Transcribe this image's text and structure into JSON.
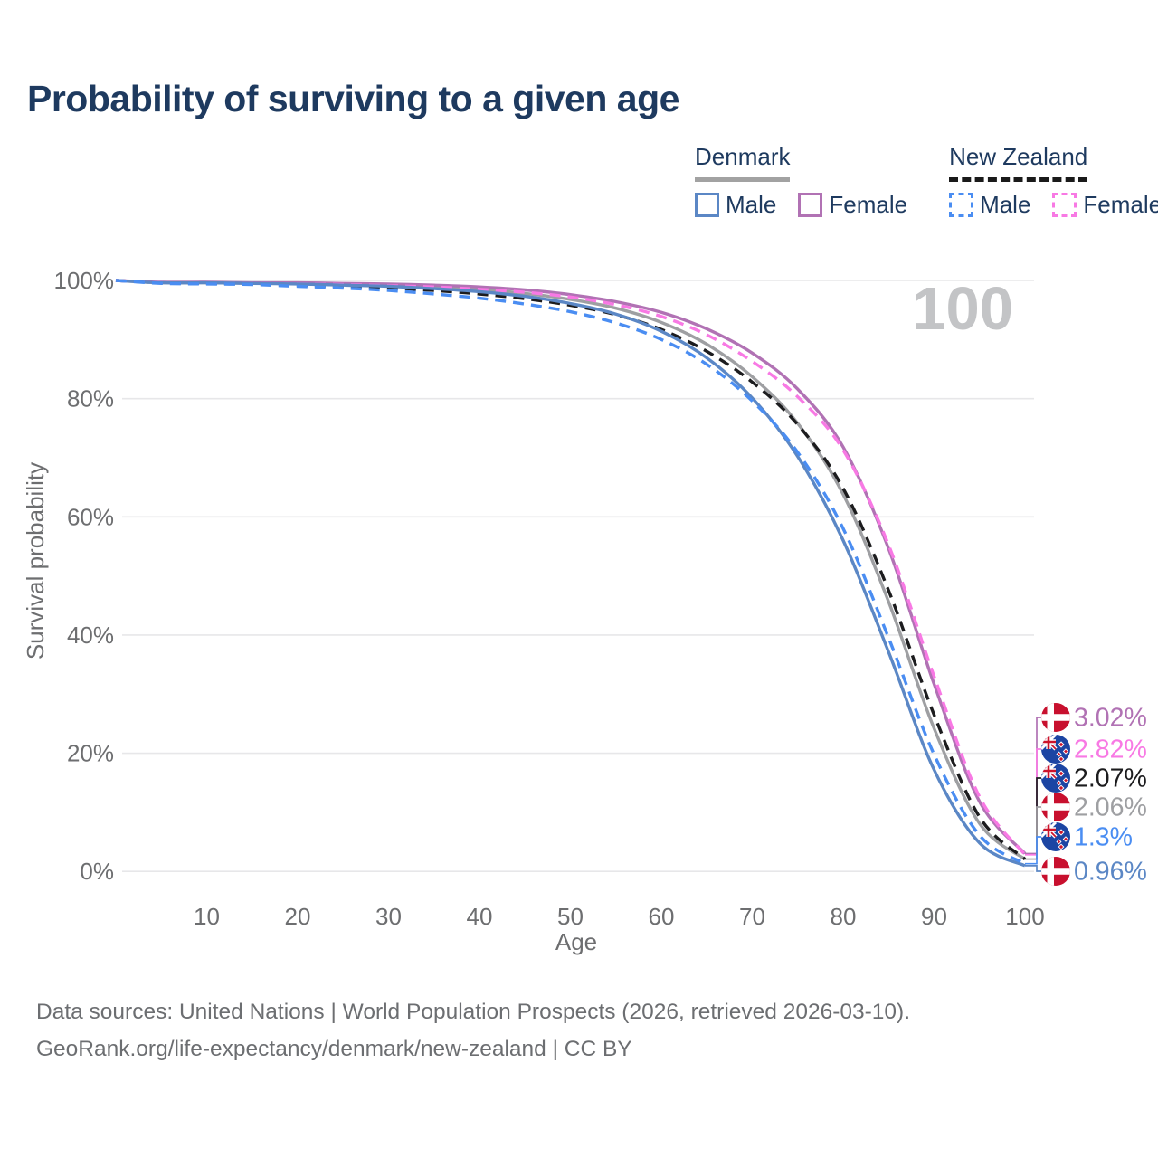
{
  "title": "Probability of surviving to a given age",
  "watermark_age": "100",
  "legend": {
    "groups": [
      {
        "label": "Denmark",
        "line_style": "solid",
        "underline_color": "#a2a2a2",
        "items": [
          {
            "label": "Male",
            "color": "#5b87c5",
            "line_style": "solid"
          },
          {
            "label": "Female",
            "color": "#b172b4",
            "line_style": "solid"
          }
        ]
      },
      {
        "label": "New Zealand",
        "line_style": "dashed",
        "underline_color": "#1a1a1a",
        "items": [
          {
            "label": "Male",
            "color": "#4a8df2",
            "line_style": "dashed"
          },
          {
            "label": "Female",
            "color": "#f879e4",
            "line_style": "dashed"
          }
        ]
      }
    ]
  },
  "chart_data": {
    "type": "line",
    "title": "Probability of surviving to a given age",
    "xlabel": "Age",
    "ylabel": "Survival probability",
    "xlim": [
      0,
      100
    ],
    "ylim": [
      0,
      100
    ],
    "grid": "horizontal",
    "legend_position": "top-right",
    "x_ticks": [
      10,
      20,
      30,
      40,
      50,
      60,
      70,
      80,
      90,
      100
    ],
    "y_ticks": [
      {
        "value": 100,
        "label": "100%"
      },
      {
        "value": 80,
        "label": "80%"
      },
      {
        "value": 60,
        "label": "60%"
      },
      {
        "value": 40,
        "label": "40%"
      },
      {
        "value": 20,
        "label": "20%"
      },
      {
        "value": 0,
        "label": "0%"
      }
    ],
    "x": [
      0,
      5,
      10,
      15,
      20,
      25,
      30,
      35,
      40,
      45,
      50,
      55,
      60,
      65,
      70,
      75,
      80,
      85,
      90,
      95,
      100
    ],
    "series": [
      {
        "name": "Denmark Female",
        "country": "Denmark",
        "sex": "female",
        "color": "#b172b4",
        "dash": "solid",
        "flag": "denmark",
        "end_label": "3.02%",
        "values": [
          100,
          99.7,
          99.7,
          99.6,
          99.6,
          99.5,
          99.4,
          99.2,
          98.9,
          98.4,
          97.6,
          96.4,
          94.6,
          91.8,
          87.7,
          81.6,
          71.8,
          54.6,
          31.7,
          11.8,
          3.02
        ]
      },
      {
        "name": "New Zealand Female",
        "country": "New Zealand",
        "sex": "female",
        "color": "#f879e4",
        "dash": "dashed",
        "flag": "new-zealand",
        "end_label": "2.82%",
        "values": [
          100,
          99.6,
          99.6,
          99.5,
          99.4,
          99.3,
          99.1,
          98.9,
          98.5,
          98.0,
          97.2,
          95.9,
          93.9,
          90.8,
          86.3,
          80.3,
          71.3,
          55.2,
          33.0,
          12.6,
          2.82
        ]
      },
      {
        "name": "New Zealand",
        "country": "New Zealand",
        "sex": "all",
        "color": "#1c1c1e",
        "dash": "dashed",
        "flag": "new-zealand",
        "end_label": "2.07%",
        "values": [
          100,
          99.6,
          99.5,
          99.4,
          99.2,
          99.0,
          98.7,
          98.3,
          97.7,
          96.9,
          95.8,
          94.2,
          91.7,
          88.0,
          82.8,
          75.6,
          64.8,
          47.5,
          26.5,
          9.2,
          2.07
        ]
      },
      {
        "name": "Denmark",
        "country": "Denmark",
        "sex": "all",
        "color": "#9e9fa2",
        "dash": "solid",
        "flag": "denmark",
        "end_label": "2.06%",
        "values": [
          100,
          99.6,
          99.6,
          99.5,
          99.5,
          99.3,
          99.2,
          98.9,
          98.5,
          97.8,
          96.8,
          95.3,
          92.9,
          89.2,
          83.7,
          75.8,
          63.8,
          45.6,
          24.2,
          8.1,
          2.06
        ]
      },
      {
        "name": "New Zealand Male",
        "country": "New Zealand",
        "sex": "male",
        "color": "#4a8df2",
        "dash": "dashed",
        "flag": "new-zealand",
        "end_label": "1.3%",
        "values": [
          100,
          99.5,
          99.4,
          99.3,
          99.0,
          98.7,
          98.3,
          97.7,
          97.0,
          96.0,
          94.7,
          92.8,
          90.0,
          85.8,
          79.6,
          70.9,
          58.0,
          39.5,
          19.8,
          6.1,
          1.3
        ]
      },
      {
        "name": "Denmark Male",
        "country": "Denmark",
        "sex": "male",
        "color": "#5b87c5",
        "dash": "solid",
        "flag": "denmark",
        "end_label": "0.96%",
        "values": [
          100,
          99.6,
          99.6,
          99.5,
          99.4,
          99.2,
          99.0,
          98.6,
          98.1,
          97.3,
          96.1,
          94.3,
          91.4,
          86.9,
          80.1,
          70.2,
          56.0,
          37.1,
          17.2,
          4.8,
          0.96
        ]
      }
    ]
  },
  "icons": {
    "denmark_flag_red": "#C8102E",
    "nz_flag_blue": "#1C45A3",
    "nz_star_red": "#CC142B",
    "flag_white": "#ffffff"
  },
  "footer": {
    "line1": "Data sources: United Nations | World Population Prospects (2026, retrieved 2026-03-10).",
    "line2": "GeoRank.org/life-expectancy/denmark/new-zealand | CC BY"
  }
}
